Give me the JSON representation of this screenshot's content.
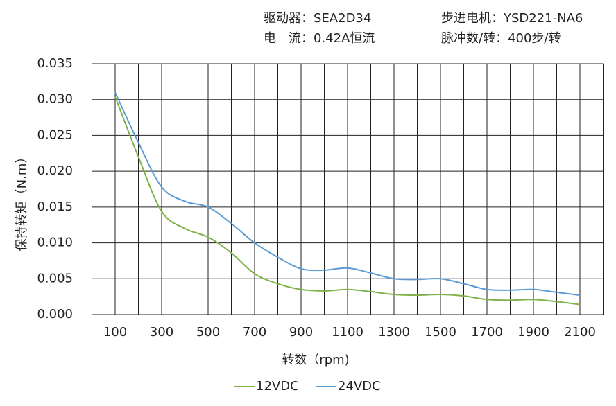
{
  "chart_data": {
    "type": "line",
    "annotations": [
      "驱动器：SEA2D34",
      "步进电机：YSD221-NA6",
      "电　流：0.42A恒流",
      "脉冲数/转：400步/转"
    ],
    "x_label": "转数（rpm)",
    "y_label": "保持转矩（N.m）",
    "x": [
      100,
      200,
      300,
      400,
      500,
      600,
      700,
      800,
      900,
      1000,
      1100,
      1200,
      1300,
      1400,
      1500,
      1600,
      1700,
      1800,
      1900,
      2000,
      2100
    ],
    "series": [
      {
        "name": "12VDC",
        "color": "#7fb24a",
        "values": [
          0.0304,
          0.022,
          0.0144,
          0.012,
          0.0108,
          0.0086,
          0.0057,
          0.0043,
          0.0035,
          0.0033,
          0.0035,
          0.0032,
          0.0028,
          0.0027,
          0.0028,
          0.0026,
          0.0021,
          0.002,
          0.0021,
          0.0018,
          0.0014
        ]
      },
      {
        "name": "24VDC",
        "color": "#5b9bd5",
        "values": [
          0.031,
          0.024,
          0.0178,
          0.0158,
          0.015,
          0.0127,
          0.01,
          0.008,
          0.0064,
          0.0062,
          0.0065,
          0.0058,
          0.005,
          0.0049,
          0.005,
          0.0043,
          0.0035,
          0.0034,
          0.0035,
          0.0031,
          0.0027
        ]
      }
    ],
    "xlim": [
      0,
      2200
    ],
    "xticks": [
      100,
      300,
      500,
      700,
      900,
      1100,
      1300,
      1500,
      1700,
      1900,
      2100
    ],
    "x_grid_step": 100,
    "ylim": [
      0,
      0.035
    ],
    "yticks": [
      {
        "value": 0,
        "label": "0.000"
      },
      0.005,
      {
        "value": 0.01,
        "label": "0.010"
      },
      0.015,
      {
        "value": 0.02,
        "label": "0.020"
      },
      0.025,
      {
        "value": 0.03,
        "label": "0.030"
      },
      0.035
    ],
    "grid": true,
    "legend": "bottom"
  }
}
